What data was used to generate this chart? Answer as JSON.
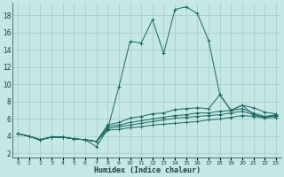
{
  "xlabel": "Humidex (Indice chaleur)",
  "background_color": "#c5e8e5",
  "grid_color": "#a8d0cc",
  "line_color": "#1a6660",
  "xlim": [
    -0.5,
    23.5
  ],
  "ylim": [
    1.5,
    19.5
  ],
  "xticks": [
    0,
    1,
    2,
    3,
    4,
    5,
    6,
    7,
    8,
    9,
    10,
    11,
    12,
    13,
    14,
    15,
    16,
    17,
    18,
    19,
    20,
    21,
    22,
    23
  ],
  "yticks": [
    2,
    4,
    6,
    8,
    10,
    12,
    14,
    16,
    18
  ],
  "series": [
    [
      4.3,
      4.0,
      3.6,
      3.9,
      3.9,
      3.7,
      3.6,
      2.8,
      4.8,
      9.7,
      15.0,
      14.8,
      17.5,
      13.6,
      18.7,
      19.0,
      18.2,
      15.1,
      8.8,
      7.0,
      7.6,
      6.5,
      6.2,
      6.4
    ],
    [
      4.3,
      4.0,
      3.6,
      3.9,
      3.9,
      3.7,
      3.6,
      3.4,
      5.3,
      5.6,
      6.1,
      6.3,
      6.6,
      6.7,
      7.1,
      7.2,
      7.3,
      7.2,
      8.8,
      7.0,
      7.6,
      7.3,
      6.8,
      6.6
    ],
    [
      4.3,
      4.0,
      3.6,
      3.9,
      3.9,
      3.7,
      3.6,
      3.4,
      5.1,
      5.3,
      5.6,
      5.8,
      6.0,
      6.2,
      6.4,
      6.5,
      6.7,
      6.7,
      6.9,
      7.0,
      7.2,
      6.7,
      6.3,
      6.5
    ],
    [
      4.3,
      4.0,
      3.6,
      3.9,
      3.9,
      3.7,
      3.6,
      3.4,
      4.9,
      5.1,
      5.3,
      5.5,
      5.7,
      5.9,
      6.1,
      6.2,
      6.3,
      6.4,
      6.5,
      6.7,
      6.9,
      6.5,
      6.2,
      6.4
    ],
    [
      4.3,
      4.0,
      3.6,
      3.9,
      3.9,
      3.7,
      3.6,
      3.4,
      4.7,
      4.8,
      5.0,
      5.1,
      5.3,
      5.4,
      5.5,
      5.6,
      5.7,
      5.9,
      6.0,
      6.2,
      6.4,
      6.3,
      6.1,
      6.2
    ]
  ]
}
